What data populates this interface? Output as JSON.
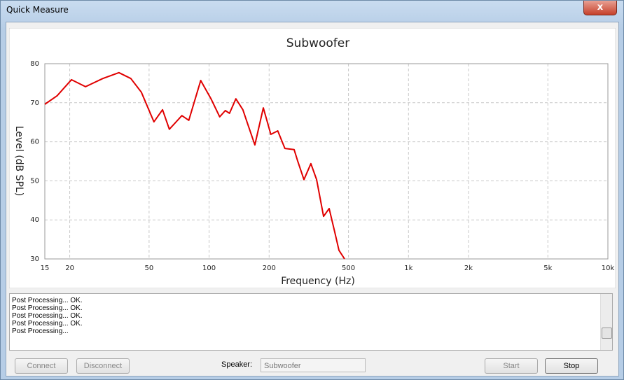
{
  "window": {
    "title": "Quick Measure"
  },
  "chart_data": {
    "type": "line",
    "title": "Subwoofer",
    "x_label": "Frequency (Hz)",
    "y_label": "Level (dB SPL)",
    "x_scale": "log",
    "grid": true,
    "xlim": [
      15,
      10000
    ],
    "ylim": [
      30,
      80
    ],
    "xticks": [
      15,
      20,
      50,
      100,
      200,
      500,
      {
        "value": 1000,
        "label": "1k"
      },
      {
        "value": 2000,
        "label": "2k"
      },
      {
        "value": 5000,
        "label": "5k"
      },
      {
        "value": 10000,
        "label": "10k"
      }
    ],
    "yticks": [
      30,
      40,
      50,
      60,
      70,
      80
    ],
    "x": [
      15,
      17.3,
      20.4,
      24.0,
      29.3,
      35.3,
      40.5,
      45.7,
      52.9,
      58.4,
      63.2,
      73.0,
      79.1,
      90.8,
      102.5,
      113,
      120.6,
      126.6,
      136.2,
      147.7,
      156,
      169.6,
      187,
      204,
      221,
      240,
      267,
      278,
      299,
      324,
      346,
      375,
      400,
      427,
      448,
      478
    ],
    "series": [
      {
        "color": "#e00000",
        "values": [
          69.6,
          71.8,
          75.9,
          74.1,
          76.2,
          77.7,
          76.2,
          72.7,
          65.1,
          68.2,
          63.2,
          66.7,
          65.5,
          75.7,
          70.9,
          66.4,
          68.0,
          67.3,
          71.0,
          68.2,
          64.6,
          59.2,
          68.7,
          61.9,
          62.8,
          58.3,
          58.0,
          55.1,
          50.3,
          54.4,
          50.3,
          40.9,
          42.9,
          36.8,
          32.2,
          30
        ]
      }
    ]
  },
  "log": [
    "Post Processing... OK.",
    "Post Processing... OK.",
    "Post Processing... OK.",
    "Post Processing... OK.",
    "Post Processing..."
  ],
  "controls": {
    "connect": "Connect",
    "disconnect": "Disconnect",
    "speaker_label": "Speaker:",
    "speaker_value": "Subwoofer",
    "start": "Start",
    "stop": "Stop"
  }
}
